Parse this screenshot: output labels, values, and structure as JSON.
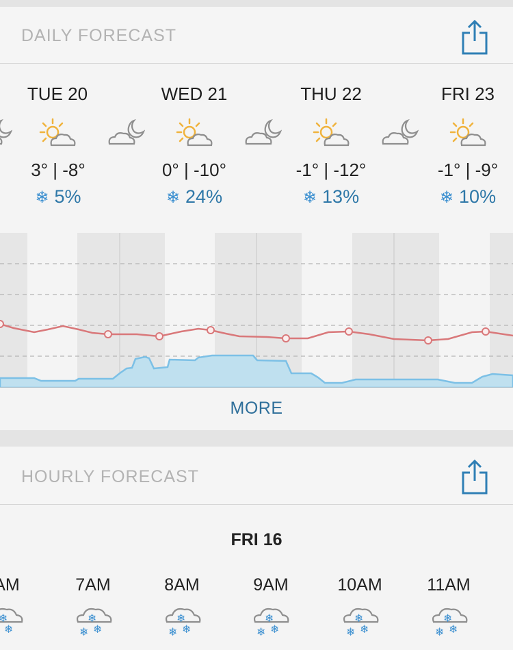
{
  "daily": {
    "title": "DAILY FORECAST",
    "days": [
      {
        "label": "TUE 20",
        "temp": "3° | -8°",
        "precip": "5%"
      },
      {
        "label": "WED 21",
        "temp": "0° | -10°",
        "precip": "24%"
      },
      {
        "label": "THU 22",
        "temp": "-1° | -12°",
        "precip": "13%"
      },
      {
        "label": "FRI 23",
        "temp": "-1° | -9°",
        "precip": "10%"
      }
    ],
    "more_label": "MORE",
    "colors": {
      "temp_line": "#d9787a",
      "precip_fill": "#bfe0ef",
      "precip_line": "#7cc0e6",
      "night_band": "#e6e6e6",
      "link": "#2f6f9a"
    }
  },
  "hourly": {
    "title": "HOURLY FORECAST",
    "day": "FRI 16",
    "hours": [
      "AM",
      "7AM",
      "8AM",
      "9AM",
      "10AM",
      "11AM"
    ]
  },
  "icons": {
    "share": "share-icon",
    "day_weather": "partly-sunny-icon",
    "night_weather": "partly-cloudy-night-icon",
    "snow": "snowflake-icon",
    "hourly_weather": "snow-cloud-icon"
  },
  "chart_data": {
    "type": "area",
    "series": [],
    "grid": "dashed horizontal lines"
  }
}
